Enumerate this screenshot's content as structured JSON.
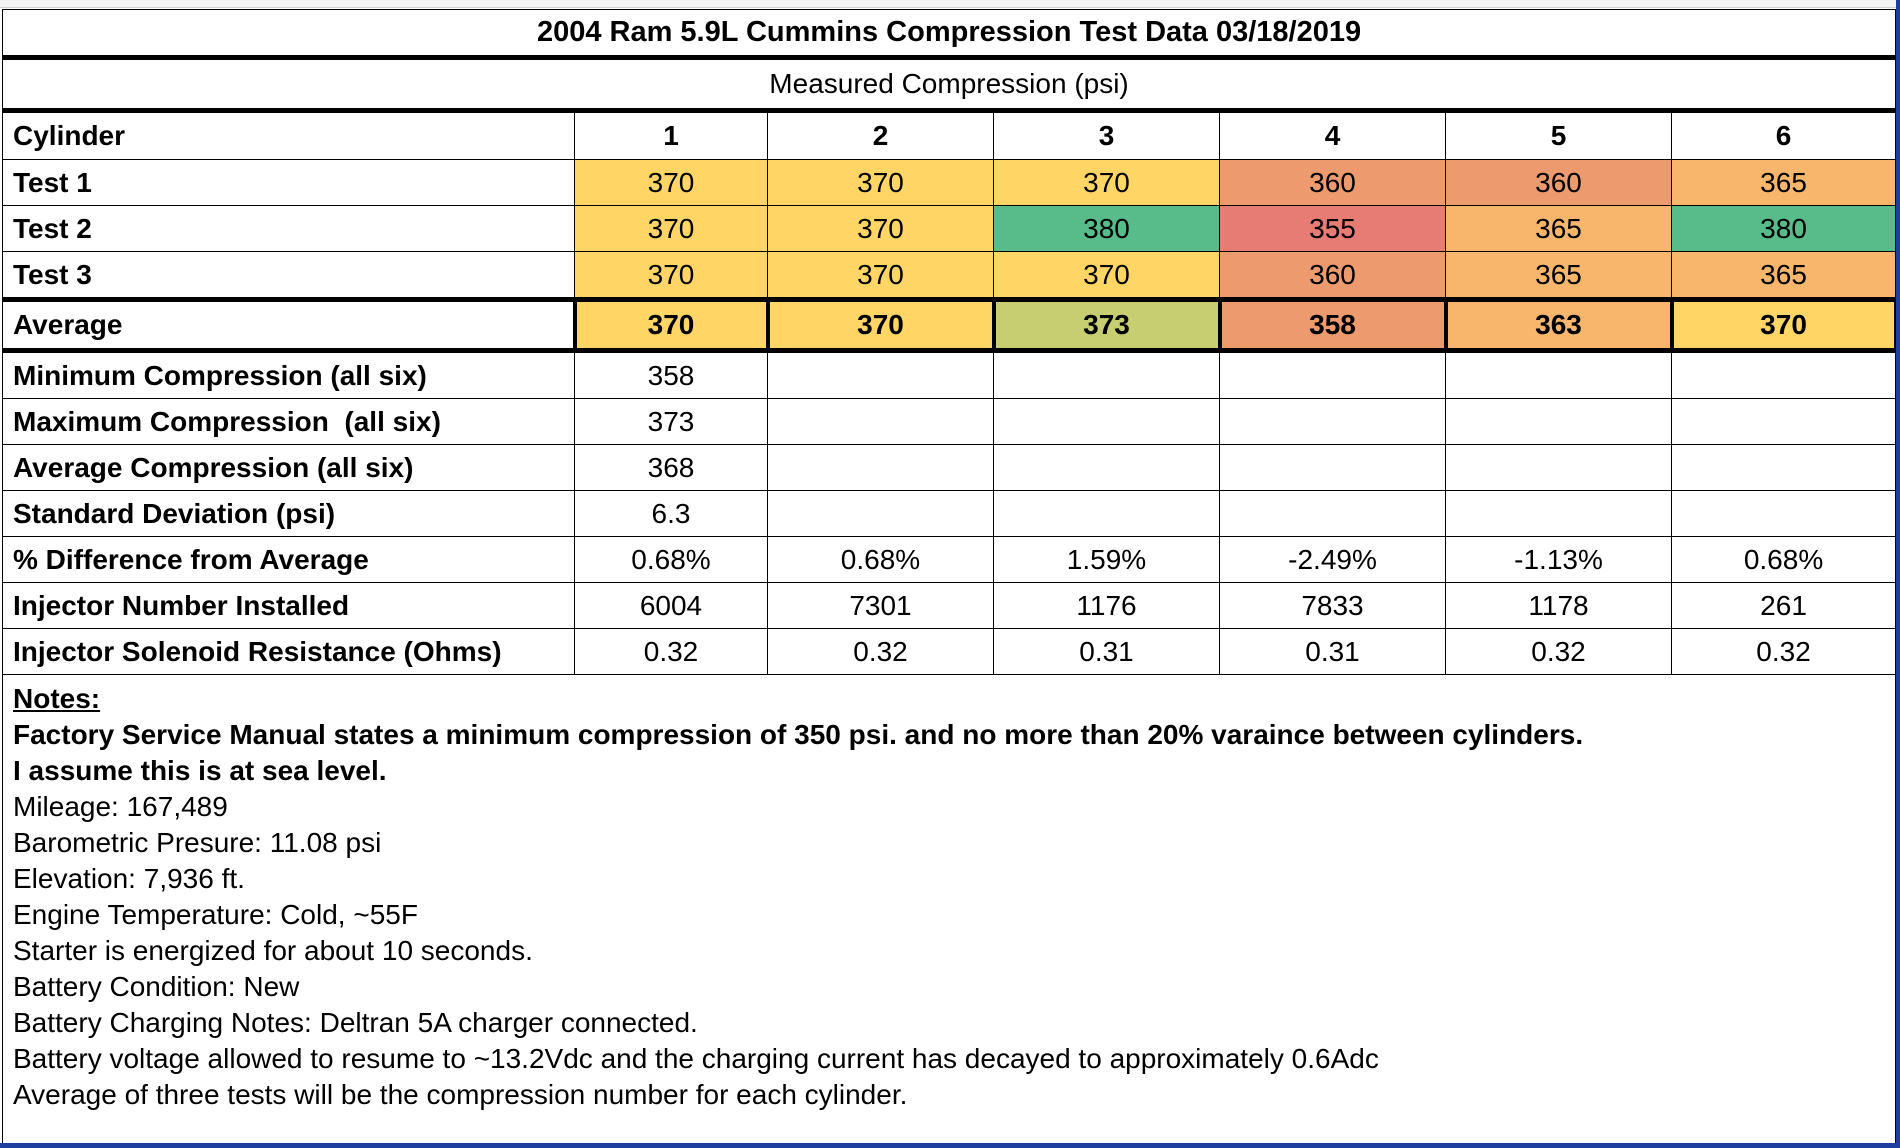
{
  "title": "2004 Ram 5.9L Cummins Compression Test Data 03/18/2019",
  "subtitle": "Measured Compression (psi)",
  "header": {
    "label": "Cylinder",
    "cylinders": [
      "1",
      "2",
      "3",
      "4",
      "5",
      "6"
    ]
  },
  "tests": [
    {
      "label": "Test 1",
      "values": [
        "370",
        "370",
        "370",
        "360",
        "360",
        "365"
      ]
    },
    {
      "label": "Test 2",
      "values": [
        "370",
        "370",
        "380",
        "355",
        "365",
        "380"
      ]
    },
    {
      "label": "Test 3",
      "values": [
        "370",
        "370",
        "370",
        "360",
        "365",
        "365"
      ]
    }
  ],
  "average": {
    "label": "Average",
    "values": [
      "370",
      "370",
      "373",
      "358",
      "363",
      "370"
    ]
  },
  "stats": [
    {
      "label": "Minimum Compression (all six)",
      "values": [
        "358",
        "",
        "",
        "",
        "",
        ""
      ]
    },
    {
      "label": "Maximum Compression  (all six)",
      "values": [
        "373",
        "",
        "",
        "",
        "",
        ""
      ]
    },
    {
      "label": "Average Compression (all six)",
      "values": [
        "368",
        "",
        "",
        "",
        "",
        ""
      ]
    },
    {
      "label": "Standard Deviation (psi)",
      "values": [
        "6.3",
        "",
        "",
        "",
        "",
        ""
      ]
    },
    {
      "label": "% Difference from Average",
      "values": [
        "0.68%",
        "0.68%",
        "1.59%",
        "-2.49%",
        "-1.13%",
        "0.68%"
      ]
    },
    {
      "label": "Injector Number Installed",
      "values": [
        "6004",
        "7301",
        "1176",
        "7833",
        "1178",
        "261"
      ]
    },
    {
      "label": "Injector Solenoid Resistance (Ohms)",
      "values": [
        "0.32",
        "0.32",
        "0.31",
        "0.31",
        "0.32",
        "0.32"
      ]
    }
  ],
  "notes": {
    "heading": "Notes:",
    "bold_lines": [
      "Factory Service Manual states a minimum compression of 350 psi. and no more than 20% varaince between cylinders.",
      "I assume this is at sea level."
    ],
    "lines": [
      "Mileage: 167,489",
      "Barometric Presure: 11.08 psi",
      "Elevation: 7,936 ft.",
      "Engine Temperature: Cold, ~55F",
      "Starter is energized for about 10 seconds.",
      "Battery Condition: New",
      "Battery Charging Notes: Deltran 5A charger connected.",
      "Battery voltage allowed to resume to ~13.2Vdc and the charging current has decayed to approximately 0.6Adc",
      "Average of three tests will be the compression number for each cylinder."
    ]
  },
  "colors": {
    "yellow": "#ffd666",
    "orange": "#f7b66b",
    "salmon": "#ed9a6e",
    "red": "#e67c73",
    "green": "#57bb8a",
    "olive": "#c7cd71"
  }
}
